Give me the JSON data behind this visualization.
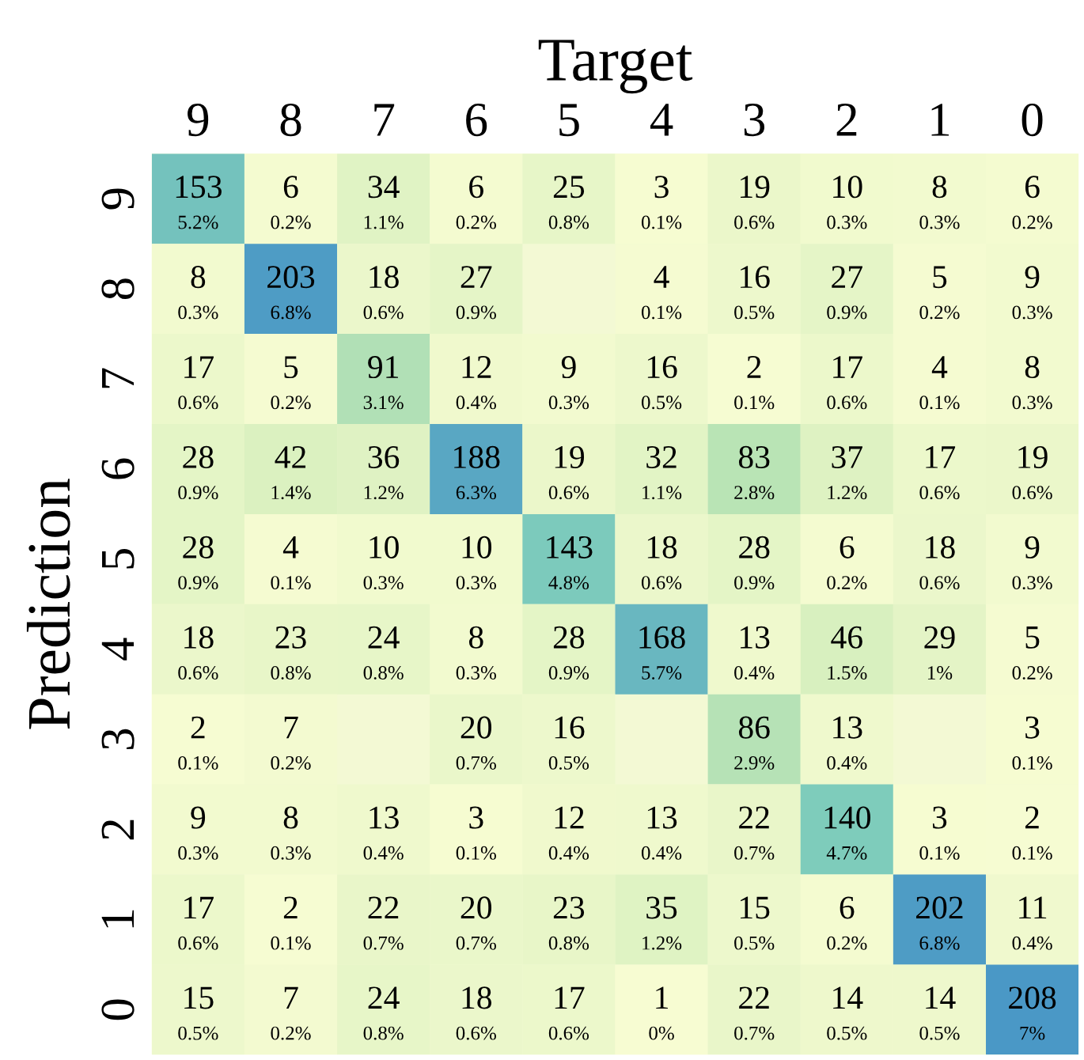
{
  "chart_data": {
    "type": "heatmap",
    "xlabel": "Target",
    "ylabel": "Prediction",
    "data_labels": true,
    "categories": [
      "9",
      "8",
      "7",
      "6",
      "5",
      "4",
      "3",
      "2",
      "1",
      "0"
    ],
    "y_categories": [
      "9",
      "8",
      "7",
      "6",
      "5",
      "4",
      "3",
      "2",
      "1",
      "0"
    ],
    "cells": [
      [
        153,
        6,
        34,
        6,
        25,
        3,
        19,
        10,
        8,
        6
      ],
      [
        8,
        203,
        18,
        27,
        null,
        4,
        16,
        27,
        5,
        9
      ],
      [
        17,
        5,
        91,
        12,
        9,
        16,
        2,
        17,
        4,
        8
      ],
      [
        28,
        42,
        36,
        188,
        19,
        32,
        83,
        37,
        17,
        19
      ],
      [
        28,
        4,
        10,
        10,
        143,
        18,
        28,
        6,
        18,
        9
      ],
      [
        18,
        23,
        24,
        8,
        28,
        168,
        13,
        46,
        29,
        5
      ],
      [
        2,
        7,
        null,
        20,
        16,
        null,
        86,
        13,
        null,
        3
      ],
      [
        9,
        8,
        13,
        3,
        12,
        13,
        22,
        140,
        3,
        2
      ],
      [
        17,
        2,
        22,
        20,
        23,
        35,
        15,
        6,
        202,
        11
      ],
      [
        15,
        7,
        24,
        18,
        17,
        1,
        22,
        14,
        14,
        208
      ]
    ],
    "annotations": [
      "5.2%",
      "0.2%",
      "1.1%",
      "0.2%",
      "0.8%",
      "0.1%",
      "0.6%",
      "0.3%",
      "0.3%",
      "0.2%",
      "0.3%",
      "6.8%",
      "0.6%",
      "0.9%",
      "0.1%",
      "0.5%",
      "0.9%",
      "0.2%",
      "0.3%",
      "0.6%",
      "0.2%",
      "3.1%",
      "0.4%",
      "0.3%",
      "0.5%",
      "0.1%",
      "0.6%",
      "0.1%",
      "0.3%",
      "0.9%",
      "1.4%",
      "1.2%",
      "6.3%",
      "0.6%",
      "1.1%",
      "2.8%",
      "1.2%",
      "0.6%",
      "0.6%",
      "0.9%",
      "0.1%",
      "0.3%",
      "0.3%",
      "4.8%",
      "0.6%",
      "0.9%",
      "0.2%",
      "0.6%",
      "0.3%",
      "0.6%",
      "0.8%",
      "0.8%",
      "0.3%",
      "0.9%",
      "5.7%",
      "0.4%",
      "1.5%",
      "1%",
      "0.2%",
      "0.1%",
      "0.2%",
      "0.7%",
      "0.5%",
      "2.9%",
      "0.4%",
      "0.1%",
      "0.3%",
      "0.3%",
      "0.4%",
      "0.1%",
      "0.4%",
      "0.4%",
      "0.7%",
      "4.7%",
      "0.1%",
      "0.1%",
      "0.6%",
      "0.1%",
      "0.7%",
      "0.7%",
      "0.8%",
      "1.2%",
      "0.5%",
      "0.2%",
      "6.8%",
      "0.4%",
      "0.5%",
      "0.2%",
      "0.8%",
      "0.6%",
      "0.6%",
      "0%",
      "0.7%",
      "0.5%",
      "0.5%",
      "7%"
    ]
  }
}
